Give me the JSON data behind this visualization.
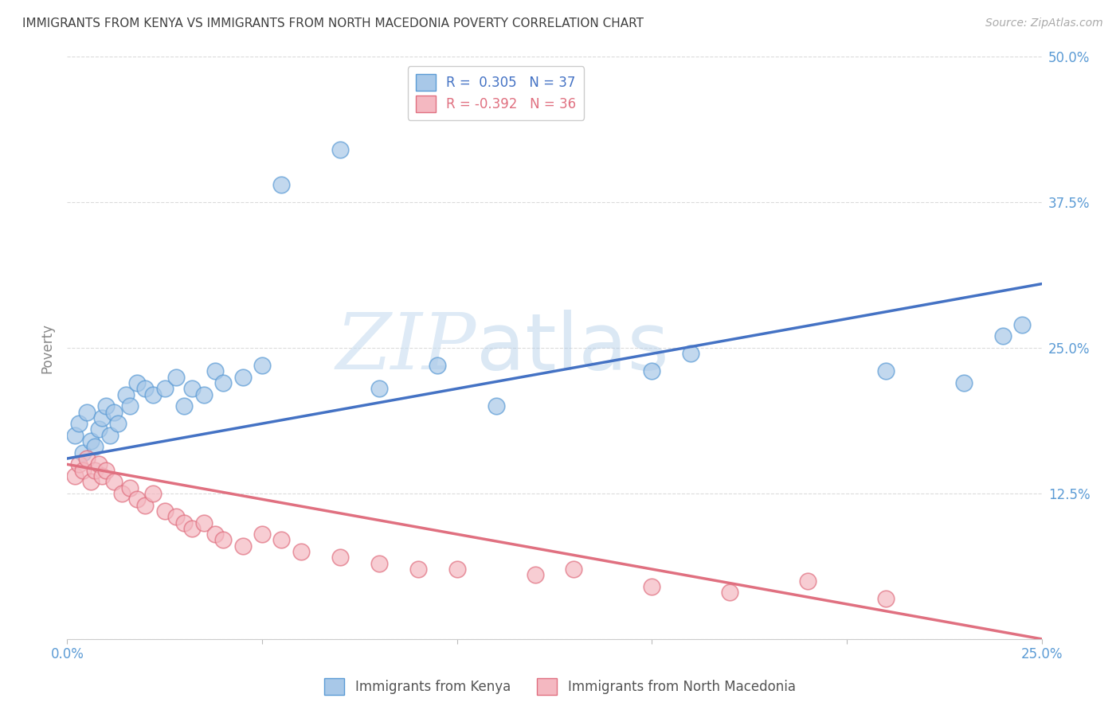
{
  "title": "IMMIGRANTS FROM KENYA VS IMMIGRANTS FROM NORTH MACEDONIA POVERTY CORRELATION CHART",
  "source": "Source: ZipAtlas.com",
  "ylabel": "Poverty",
  "xlabel": "",
  "xlim": [
    0.0,
    0.25
  ],
  "ylim": [
    0.0,
    0.5
  ],
  "xticks": [
    0.0,
    0.05,
    0.1,
    0.15,
    0.2,
    0.25
  ],
  "yticks": [
    0.0,
    0.125,
    0.25,
    0.375,
    0.5
  ],
  "xticklabels": [
    "0.0%",
    "",
    "",
    "",
    "",
    "25.0%"
  ],
  "yticklabels": [
    "",
    "12.5%",
    "25.0%",
    "37.5%",
    "50.0%"
  ],
  "kenya_color": "#a8c8e8",
  "kenya_edge": "#5b9bd5",
  "kenya_line_color": "#4472c4",
  "macedonia_color": "#f4b8c1",
  "macedonia_edge": "#e07080",
  "macedonia_line_color": "#e07080",
  "kenya_R": 0.305,
  "kenya_N": 37,
  "macedonia_R": -0.392,
  "macedonia_N": 36,
  "kenya_label": "Immigrants from Kenya",
  "macedonia_label": "Immigrants from North Macedonia",
  "watermark_zip": "ZIP",
  "watermark_atlas": "atlas",
  "kenya_scatter_x": [
    0.002,
    0.003,
    0.004,
    0.005,
    0.006,
    0.007,
    0.008,
    0.009,
    0.01,
    0.011,
    0.012,
    0.013,
    0.015,
    0.016,
    0.018,
    0.02,
    0.022,
    0.025,
    0.028,
    0.03,
    0.032,
    0.035,
    0.038,
    0.04,
    0.045,
    0.05,
    0.055,
    0.07,
    0.08,
    0.095,
    0.11,
    0.15,
    0.16,
    0.21,
    0.23,
    0.24,
    0.245
  ],
  "kenya_scatter_y": [
    0.175,
    0.185,
    0.16,
    0.195,
    0.17,
    0.165,
    0.18,
    0.19,
    0.2,
    0.175,
    0.195,
    0.185,
    0.21,
    0.2,
    0.22,
    0.215,
    0.21,
    0.215,
    0.225,
    0.2,
    0.215,
    0.21,
    0.23,
    0.22,
    0.225,
    0.235,
    0.39,
    0.42,
    0.215,
    0.235,
    0.2,
    0.23,
    0.245,
    0.23,
    0.22,
    0.26,
    0.27
  ],
  "macedonia_scatter_x": [
    0.002,
    0.003,
    0.004,
    0.005,
    0.006,
    0.007,
    0.008,
    0.009,
    0.01,
    0.012,
    0.014,
    0.016,
    0.018,
    0.02,
    0.022,
    0.025,
    0.028,
    0.03,
    0.032,
    0.035,
    0.038,
    0.04,
    0.045,
    0.05,
    0.055,
    0.06,
    0.07,
    0.08,
    0.09,
    0.1,
    0.12,
    0.13,
    0.15,
    0.17,
    0.19,
    0.21
  ],
  "macedonia_scatter_y": [
    0.14,
    0.15,
    0.145,
    0.155,
    0.135,
    0.145,
    0.15,
    0.14,
    0.145,
    0.135,
    0.125,
    0.13,
    0.12,
    0.115,
    0.125,
    0.11,
    0.105,
    0.1,
    0.095,
    0.1,
    0.09,
    0.085,
    0.08,
    0.09,
    0.085,
    0.075,
    0.07,
    0.065,
    0.06,
    0.06,
    0.055,
    0.06,
    0.045,
    0.04,
    0.05,
    0.035
  ],
  "kenya_trend_x0": 0.0,
  "kenya_trend_y0": 0.155,
  "kenya_trend_x1": 0.25,
  "kenya_trend_y1": 0.305,
  "macedonia_trend_x0": 0.0,
  "macedonia_trend_y0": 0.15,
  "macedonia_trend_x1": 0.25,
  "macedonia_trend_y1": 0.0,
  "background_color": "#ffffff",
  "grid_color": "#cccccc",
  "title_color": "#404040",
  "axis_label_color": "#888888",
  "tick_color_blue": "#5b9bd5",
  "legend_R_color": "#4472c4",
  "legend_R2_color": "#e07080"
}
